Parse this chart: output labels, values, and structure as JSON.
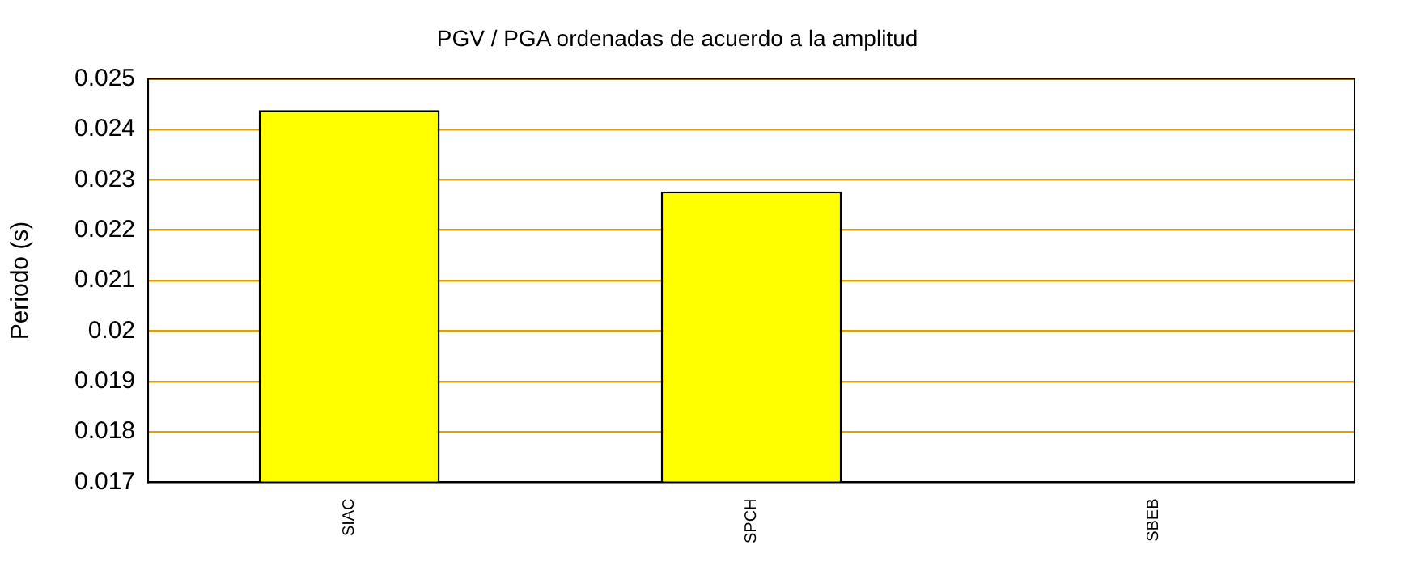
{
  "chart_data": {
    "type": "bar",
    "title": "PGV / PGA ordenadas de acuerdo a la amplitud",
    "ylabel": "Periodo (s)",
    "categories": [
      "SIAC",
      "SPCH",
      "SBEB"
    ],
    "series": [
      {
        "color": "#ffff00",
        "values": [
          0.02438,
          0.02277,
          null
        ]
      }
    ],
    "ylim": [
      0.017,
      0.025
    ],
    "yticks": [
      0.017,
      0.018,
      0.019,
      0.02,
      0.021,
      0.022,
      0.023,
      0.024,
      0.025
    ],
    "grid": "y",
    "legend": false
  }
}
